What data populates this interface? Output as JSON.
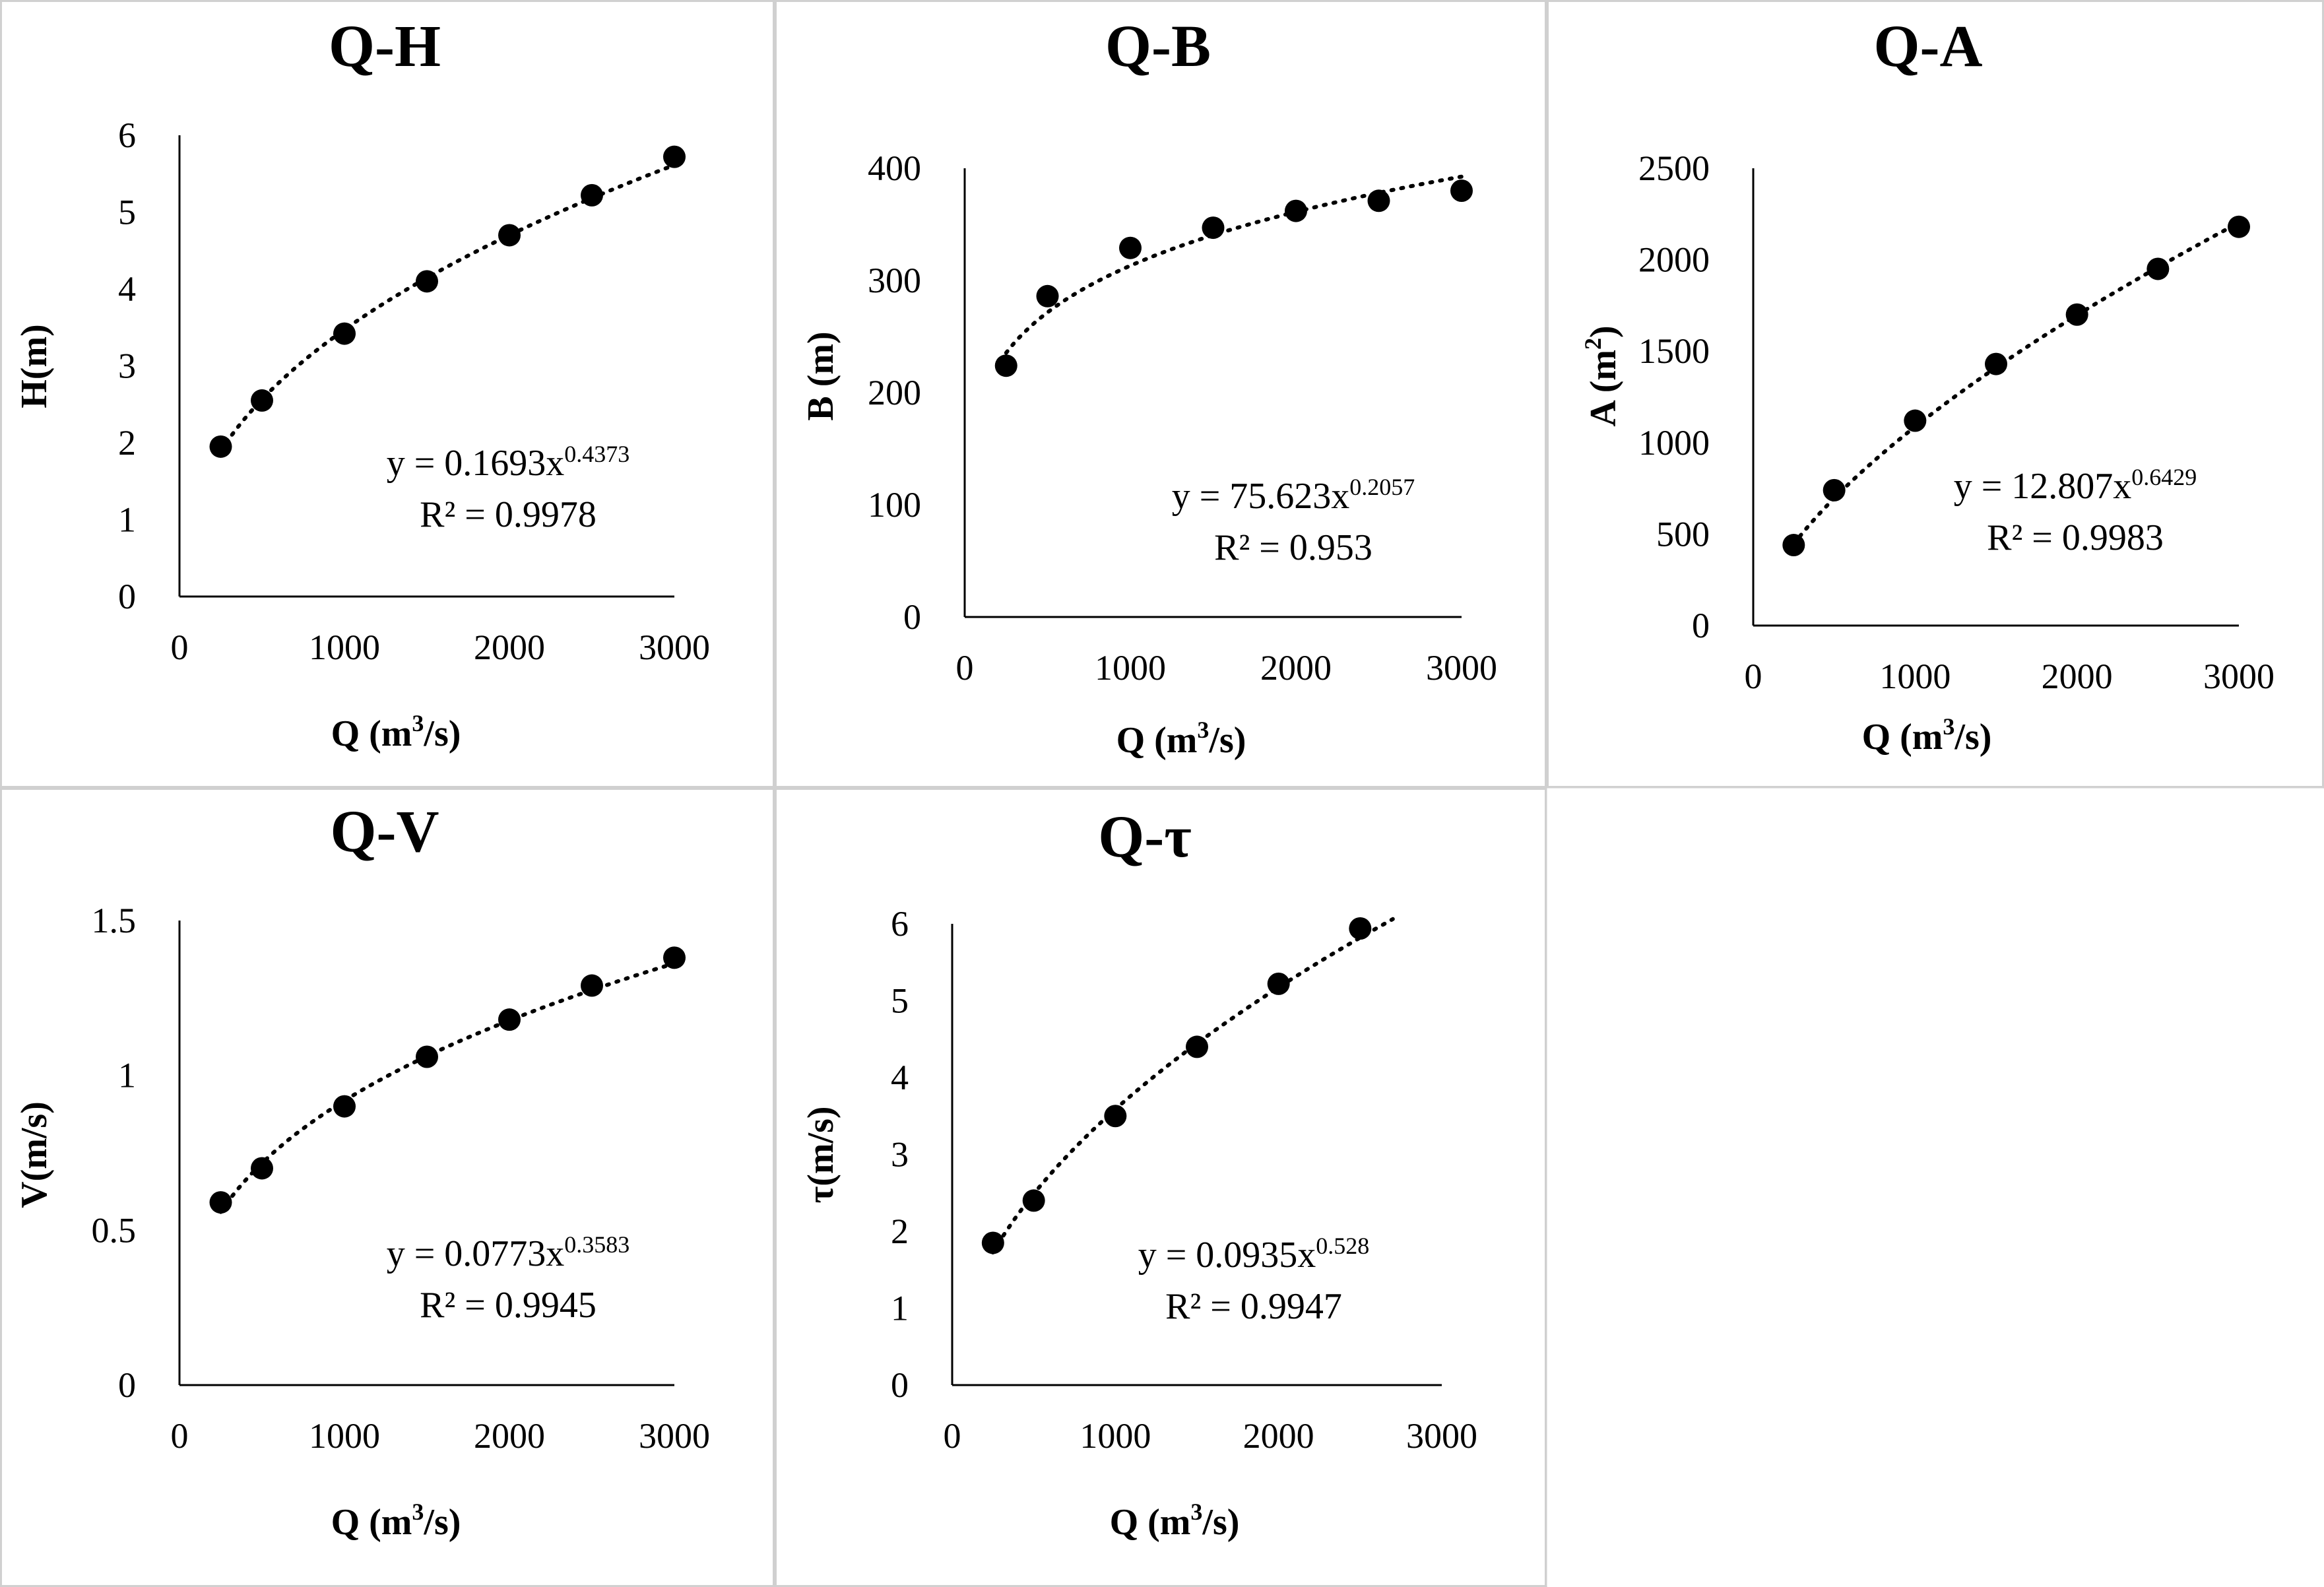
{
  "chart_data": [
    {
      "type": "scatter",
      "title": "Q-H",
      "xlabel_main": "Q (m",
      "xlabel_sup": "3",
      "xlabel_end": "/s)",
      "ylabel_main": "H(m)",
      "ylabel_sup": "",
      "ylabel_end": "",
      "xlim": [
        0,
        3000
      ],
      "ylim": [
        0,
        6
      ],
      "x_ticks": [
        "0",
        "1000",
        "2000",
        "3000"
      ],
      "y_ticks": [
        "0",
        "1",
        "2",
        "3",
        "4",
        "5",
        "6"
      ],
      "x": [
        250,
        500,
        1000,
        1500,
        2000,
        2500,
        3000
      ],
      "y": [
        1.95,
        2.55,
        3.42,
        4.1,
        4.7,
        5.22,
        5.72
      ],
      "trendline": {
        "type": "power",
        "coefficient": 0.1693,
        "exponent": 0.4373,
        "x_range": [
          250,
          3000
        ]
      },
      "equation_main": "y = 0.1693x",
      "equation_exp": "0.4373",
      "r_squared": "R² = 0.9978"
    },
    {
      "type": "scatter",
      "title": "Q-B",
      "xlabel_main": "Q (m",
      "xlabel_sup": "3",
      "xlabel_end": "/s)",
      "ylabel_main": "B (m)",
      "ylabel_sup": "",
      "ylabel_end": "",
      "xlim": [
        0,
        3000
      ],
      "ylim": [
        0,
        400
      ],
      "x_ticks": [
        "0",
        "1000",
        "2000",
        "3000"
      ],
      "y_ticks": [
        "0",
        "100",
        "200",
        "300",
        "400"
      ],
      "x": [
        250,
        500,
        1000,
        1500,
        2000,
        2500,
        3000
      ],
      "y": [
        224,
        286,
        329,
        347,
        362,
        371,
        380
      ],
      "trendline": {
        "type": "power",
        "coefficient": 75.623,
        "exponent": 0.2057,
        "x_range": [
          250,
          3000
        ]
      },
      "equation_main": "y = 75.623x",
      "equation_exp": "0.2057",
      "r_squared": "R² = 0.953"
    },
    {
      "type": "scatter",
      "title": "Q-A",
      "xlabel_main": "Q (m",
      "xlabel_sup": "3",
      "xlabel_end": "/s)",
      "ylabel_main": "A (m",
      "ylabel_sup": "2",
      "ylabel_end": ")",
      "xlim": [
        0,
        3000
      ],
      "ylim": [
        0,
        2500
      ],
      "x_ticks": [
        "0",
        "1000",
        "2000",
        "3000"
      ],
      "y_ticks": [
        "0",
        "500",
        "1000",
        "1500",
        "2000",
        "2500"
      ],
      "x": [
        250,
        500,
        1000,
        1500,
        2000,
        2500,
        3000
      ],
      "y": [
        440,
        740,
        1120,
        1430,
        1700,
        1950,
        2180
      ],
      "trendline": {
        "type": "power",
        "coefficient": 12.807,
        "exponent": 0.6429,
        "x_range": [
          250,
          3000
        ]
      },
      "equation_main": "y = 12.807x",
      "equation_exp": "0.6429",
      "r_squared": "R² = 0.9983"
    },
    {
      "type": "scatter",
      "title": "Q-V",
      "xlabel_main": "Q (m",
      "xlabel_sup": "3",
      "xlabel_end": "/s)",
      "ylabel_main": "V(m/s)",
      "ylabel_sup": "",
      "ylabel_end": "",
      "xlim": [
        0,
        3000
      ],
      "ylim": [
        0,
        1.5
      ],
      "x_ticks": [
        "0",
        "1000",
        "2000",
        "3000"
      ],
      "y_ticks": [
        "0",
        "0.5",
        "1",
        "1.5"
      ],
      "x": [
        250,
        500,
        1000,
        1500,
        2000,
        2500,
        3000
      ],
      "y": [
        0.59,
        0.7,
        0.9,
        1.06,
        1.18,
        1.29,
        1.38
      ],
      "trendline": {
        "type": "power",
        "coefficient": 0.0773,
        "exponent": 0.3583,
        "x_range": [
          250,
          3000
        ]
      },
      "equation_main": "y = 0.0773x",
      "equation_exp": "0.3583",
      "r_squared": "R² = 0.9945"
    },
    {
      "type": "scatter",
      "title": "Q-τ",
      "xlabel_main": "Q (m",
      "xlabel_sup": "3",
      "xlabel_end": "/s)",
      "ylabel_main": "τ(m/s)",
      "ylabel_sup": "",
      "ylabel_end": "",
      "xlim": [
        0,
        3000
      ],
      "ylim": [
        0,
        6
      ],
      "x_ticks": [
        "0",
        "1000",
        "2000",
        "3000"
      ],
      "y_ticks": [
        "0",
        "1",
        "2",
        "3",
        "4",
        "5",
        "6"
      ],
      "x": [
        250,
        500,
        1000,
        1500,
        2000,
        2500
      ],
      "y": [
        1.85,
        2.4,
        3.5,
        4.4,
        5.22,
        5.94
      ],
      "trendline": {
        "type": "power",
        "coefficient": 0.0935,
        "exponent": 0.528,
        "x_range": [
          250,
          2700
        ]
      },
      "equation_main": "y = 0.0935x",
      "equation_exp": "0.528",
      "r_squared": "R² = 0.9947"
    }
  ]
}
